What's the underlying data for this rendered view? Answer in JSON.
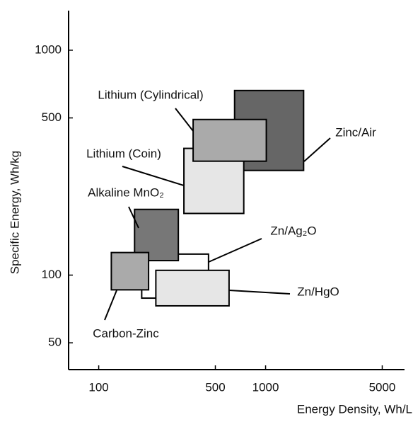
{
  "chart_data": {
    "type": "range-box",
    "x_label": "Energy Density, Wh/L",
    "y_label": "Specific Energy, Wh/kg",
    "xscale": "log",
    "yscale": "log",
    "xlim": [
      66,
      6800
    ],
    "ylim": [
      38,
      1500
    ],
    "xticks": [
      100,
      500,
      1000,
      5000
    ],
    "yticks": [
      50,
      100,
      500,
      1000
    ],
    "series": [
      {
        "name": "Zinc/Air",
        "color": "#666666",
        "x": [
          652,
          1690
        ],
        "y": [
          292,
          662
        ]
      },
      {
        "name": "Lithium (Coin)",
        "color": "#e6e6e6",
        "x": [
          324,
          740
        ],
        "y": [
          188,
          366
        ]
      },
      {
        "name": "Lithium (Cylindrical)",
        "color": "#aaaaaa",
        "x": [
          368,
          1010
        ],
        "y": [
          321,
          492
        ]
      },
      {
        "name": "Zn/Ag₂O",
        "color": "#ffffff",
        "x": [
          181,
          455
        ],
        "y": [
          79,
          124
        ]
      },
      {
        "name": "Alkaline MnO₂",
        "color": "#777777",
        "x": [
          164,
          300
        ],
        "y": [
          116,
          196
        ]
      },
      {
        "name": "Carbon-Zinc",
        "color": "#aaaaaa",
        "x": [
          119,
          199
        ],
        "y": [
          86,
          126
        ]
      },
      {
        "name": "Zn/HgO",
        "color": "#e6e6e6",
        "x": [
          220,
          604
        ],
        "y": [
          73,
          105
        ]
      }
    ]
  }
}
